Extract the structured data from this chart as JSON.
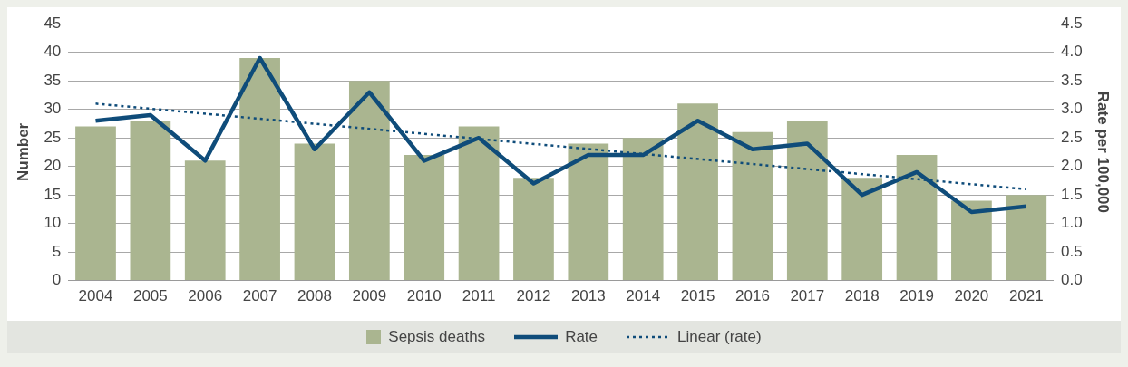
{
  "chart_data": {
    "type": "bar",
    "categories": [
      "2004",
      "2005",
      "2006",
      "2007",
      "2008",
      "2009",
      "2010",
      "2011",
      "2012",
      "2013",
      "2014",
      "2015",
      "2016",
      "2017",
      "2018",
      "2019",
      "2020",
      "2021"
    ],
    "series": [
      {
        "name": "Sepsis deaths",
        "color": "#aab590",
        "values": [
          27,
          28,
          21,
          39,
          24,
          35,
          22,
          27,
          18,
          24,
          25,
          31,
          26,
          28,
          18,
          22,
          14,
          15
        ]
      },
      {
        "name": "Rate",
        "type": "line",
        "axis": "y2",
        "color": "#0f4c7a",
        "line_style": "solid",
        "values": [
          2.8,
          2.9,
          2.1,
          3.9,
          2.3,
          3.3,
          2.1,
          2.5,
          1.7,
          2.2,
          2.2,
          2.8,
          2.3,
          2.4,
          1.5,
          1.9,
          1.2,
          1.3
        ]
      },
      {
        "name": "Linear (rate)",
        "type": "line",
        "axis": "y2",
        "color": "#0f4c7a",
        "line_style": "dotted",
        "values": [
          3.1,
          null,
          null,
          null,
          null,
          null,
          null,
          null,
          null,
          null,
          null,
          null,
          null,
          null,
          null,
          null,
          null,
          1.6
        ]
      }
    ],
    "ylabel": "Number",
    "y2label": "Rate per 100,000",
    "ylim": [
      0,
      45
    ],
    "yticks": [
      0,
      5,
      10,
      15,
      20,
      25,
      30,
      35,
      40,
      45
    ],
    "y2lim": [
      0,
      4.5
    ],
    "y2ticks": [
      {
        "value": 0,
        "label": "0.0"
      },
      {
        "value": 0.5,
        "label": "0.5"
      },
      {
        "value": 1,
        "label": "1.0"
      },
      {
        "value": 1.5,
        "label": "1.5"
      },
      {
        "value": 2,
        "label": "2.0"
      },
      {
        "value": 2.5,
        "label": "2.5"
      },
      {
        "value": 3,
        "label": "3.0"
      },
      {
        "value": 3.5,
        "label": "3.5"
      },
      {
        "value": 4,
        "label": "4.0"
      },
      {
        "value": 4.5,
        "label": "4.5"
      }
    ],
    "grid": "y",
    "legend": "bottom",
    "marker": "none"
  }
}
